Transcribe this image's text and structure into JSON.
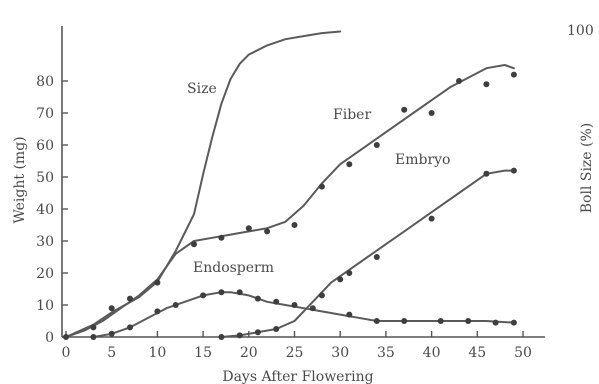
{
  "chart_data": {
    "type": "line",
    "title": "",
    "xlabel": "Days After Flowering",
    "ylabel": "Weight (mg)",
    "y2label": "Boll Size (%)",
    "x_ticks": [
      "0",
      "5",
      "10",
      "15",
      "20",
      "25",
      "30",
      "35",
      "40",
      "45",
      "50"
    ],
    "y_ticks": [
      "0",
      "10",
      "20",
      "30",
      "40",
      "50",
      "60",
      "70",
      "80"
    ],
    "y2_ticks": [
      "100"
    ],
    "xlim": [
      0,
      50
    ],
    "ylim": [
      0,
      85
    ],
    "y2lim": [
      0,
      100
    ],
    "grid": false,
    "legend": "none",
    "series": [
      {
        "name": "Size",
        "axis": "right",
        "markers": false,
        "points": [
          [
            0,
            0
          ],
          [
            3,
            4
          ],
          [
            5,
            8
          ],
          [
            8,
            13
          ],
          [
            10,
            18
          ],
          [
            12,
            28
          ],
          [
            14,
            40
          ],
          [
            15,
            53
          ],
          [
            16,
            65
          ],
          [
            17,
            76
          ],
          [
            18,
            84
          ],
          [
            19,
            89
          ],
          [
            20,
            92
          ],
          [
            22,
            95
          ],
          [
            24,
            97
          ],
          [
            26,
            98
          ],
          [
            28,
            99
          ],
          [
            30,
            99.5
          ]
        ]
      },
      {
        "name": "Fiber",
        "axis": "left",
        "markers": true,
        "points": [
          [
            0,
            0
          ],
          [
            2,
            2
          ],
          [
            4,
            5
          ],
          [
            6,
            9
          ],
          [
            8,
            13
          ],
          [
            10,
            18
          ],
          [
            12,
            26
          ],
          [
            14,
            30
          ],
          [
            16,
            31
          ],
          [
            18,
            32
          ],
          [
            20,
            33
          ],
          [
            22,
            34
          ],
          [
            24,
            36
          ],
          [
            26,
            41
          ],
          [
            28,
            48
          ],
          [
            30,
            54
          ],
          [
            32,
            58
          ],
          [
            34,
            62
          ],
          [
            36,
            66
          ],
          [
            38,
            70
          ],
          [
            40,
            74
          ],
          [
            42,
            78
          ],
          [
            44,
            81
          ],
          [
            46,
            84
          ],
          [
            48,
            85
          ],
          [
            49,
            84
          ]
        ],
        "marker_points": [
          [
            0,
            0
          ],
          [
            3,
            3
          ],
          [
            5,
            9
          ],
          [
            7,
            12
          ],
          [
            10,
            17
          ],
          [
            14,
            29
          ],
          [
            17,
            31
          ],
          [
            20,
            34
          ],
          [
            22,
            33
          ],
          [
            25,
            35
          ],
          [
            28,
            47
          ],
          [
            31,
            54
          ],
          [
            34,
            60
          ],
          [
            37,
            71
          ],
          [
            40,
            70
          ],
          [
            43,
            80
          ],
          [
            46,
            79
          ],
          [
            49,
            82
          ]
        ]
      },
      {
        "name": "Endosperm",
        "axis": "left",
        "markers": true,
        "points": [
          [
            3,
            0
          ],
          [
            5,
            1
          ],
          [
            7,
            3
          ],
          [
            9,
            6
          ],
          [
            11,
            9
          ],
          [
            13,
            11
          ],
          [
            15,
            13
          ],
          [
            17,
            14
          ],
          [
            18,
            14
          ],
          [
            20,
            13
          ],
          [
            22,
            11
          ],
          [
            24,
            10
          ],
          [
            26,
            9
          ],
          [
            28,
            8
          ],
          [
            30,
            7
          ],
          [
            32,
            6
          ],
          [
            34,
            5
          ],
          [
            38,
            5
          ],
          [
            42,
            5
          ],
          [
            46,
            5
          ],
          [
            49,
            4.5
          ]
        ],
        "marker_points": [
          [
            3,
            0
          ],
          [
            5,
            1
          ],
          [
            7,
            3
          ],
          [
            10,
            8
          ],
          [
            12,
            10
          ],
          [
            15,
            13
          ],
          [
            17,
            14
          ],
          [
            19,
            14
          ],
          [
            21,
            12
          ],
          [
            23,
            11
          ],
          [
            25,
            10
          ],
          [
            27,
            9
          ],
          [
            31,
            7
          ],
          [
            34,
            5
          ],
          [
            37,
            5
          ],
          [
            41,
            5
          ],
          [
            44,
            5
          ],
          [
            47,
            4.5
          ],
          [
            49,
            4.5
          ]
        ]
      },
      {
        "name": "Embryo",
        "axis": "left",
        "markers": true,
        "points": [
          [
            17,
            0
          ],
          [
            19,
            0.5
          ],
          [
            21,
            1.5
          ],
          [
            23,
            2.5
          ],
          [
            25,
            5
          ],
          [
            27,
            11
          ],
          [
            29,
            17
          ],
          [
            31,
            21
          ],
          [
            33,
            25
          ],
          [
            35,
            29
          ],
          [
            37,
            33
          ],
          [
            39,
            37
          ],
          [
            41,
            41
          ],
          [
            43,
            45
          ],
          [
            45,
            49
          ],
          [
            46,
            51
          ],
          [
            48,
            52
          ],
          [
            49,
            52
          ]
        ],
        "marker_points": [
          [
            17,
            0
          ],
          [
            19,
            0.5
          ],
          [
            21,
            1.5
          ],
          [
            23,
            2.5
          ],
          [
            28,
            13
          ],
          [
            30,
            18
          ],
          [
            31,
            20
          ],
          [
            34,
            25
          ],
          [
            40,
            37
          ],
          [
            46,
            51
          ],
          [
            49,
            52
          ]
        ]
      }
    ]
  }
}
